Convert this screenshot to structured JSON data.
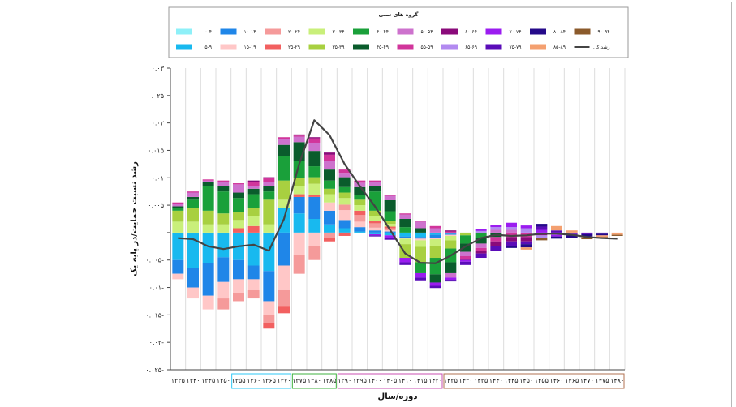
{
  "chart_data": {
    "type": "bar",
    "stacked": true,
    "title": "",
    "legend_title": "گروه های سنی",
    "legend_position": "top",
    "ylabel": "رشد نسبت حمایت/در پایه یک",
    "xlabel": "دوره/سال",
    "ylim": [
      -0.025,
      0.03
    ],
    "yticks": [
      -0.025,
      -0.02,
      -0.015,
      -0.01,
      -0.005,
      0,
      0.005,
      0.01,
      0.015,
      0.02,
      0.025,
      0.03
    ],
    "ytick_labels": [
      "۰.۰۲۵-",
      "۰.۰۲-",
      "۰.۰۱۵-",
      "۰.۰۱-",
      "۰.۰۰۵-",
      "۰",
      "۰.۰۰۵",
      "۰.۰۱",
      "۰.۰۱۵",
      "۰.۰۲",
      "۰.۰۲۵",
      "۰.۰۳"
    ],
    "grid": true,
    "categories": [
      "۱۳۳۵",
      "۱۳۴۰",
      "۱۳۴۵",
      "۱۳۵۰",
      "۱۳۵۵",
      "۱۳۶۰",
      "۱۳۶۵",
      "۱۳۷۰",
      "۱۳۷۵",
      "۱۳۸۰",
      "۱۳۸۵",
      "۱۳۹۰",
      "۱۳۹۵",
      "۱۴۰۰",
      "۱۴۰۵",
      "۱۴۱۰",
      "۱۴۱۵",
      "۱۴۲۰",
      "۱۴۲۵",
      "۱۴۳۰",
      "۱۴۳۵",
      "۱۴۴۰",
      "۱۴۴۵",
      "۱۴۵۰",
      "۱۴۵۵",
      "۱۴۶۰",
      "۱۴۶۵",
      "۱۴۷۰",
      "۱۴۷۵",
      "۱۴۸۰"
    ],
    "period_groups": [
      {
        "color": "#2ec7f5",
        "start": 4,
        "end": 7
      },
      {
        "color": "#3fb23f",
        "start": 8,
        "end": 10
      },
      {
        "color": "#c84fb0",
        "start": 11,
        "end": 17
      },
      {
        "color": "#b07050",
        "start": 18,
        "end": 29
      }
    ],
    "series": [
      {
        "name": "۰-۴",
        "color": "#8ef0f8",
        "values": [
          0,
          0,
          0,
          0,
          0,
          0,
          0,
          0,
          0,
          0,
          0,
          0,
          0,
          0,
          0,
          0,
          0,
          0,
          0,
          0,
          0,
          0,
          0,
          0,
          0,
          0,
          0,
          0,
          0,
          0
        ]
      },
      {
        "name": "۵-۹",
        "color": "#18b9ef",
        "values": [
          -0.005,
          -0.0065,
          -0.0055,
          -0.0045,
          -0.005,
          -0.006,
          -0.007,
          0.0045,
          0.0035,
          0.0025,
          0.0015,
          0.0008,
          0.0002,
          -0.0003,
          -0.0005,
          -0.0007,
          -0.0008,
          -0.0004,
          -0.0002,
          0,
          0,
          0,
          0,
          0,
          0,
          0,
          0,
          0,
          0,
          0
        ]
      },
      {
        "name": "۱۰-۱۴",
        "color": "#1f86e8",
        "values": [
          -0.0025,
          -0.0035,
          -0.006,
          -0.0045,
          -0.0035,
          -0.0025,
          -0.0055,
          -0.006,
          0.003,
          0.004,
          0.0025,
          0.0015,
          0.0008,
          0.0004,
          0.0002,
          -0.0002,
          -0.0003,
          -0.0005,
          -0.0002,
          0,
          0,
          0,
          0,
          0,
          0,
          0,
          0,
          0,
          0,
          0
        ]
      },
      {
        "name": "۱۵-۱۹",
        "color": "#ffc7c7",
        "values": [
          -0.001,
          -0.002,
          -0.0025,
          -0.003,
          -0.0025,
          -0.002,
          -0.0025,
          -0.0045,
          -0.004,
          -0.0025,
          0.0015,
          0.0018,
          0.001,
          0.0005,
          0.0002,
          -0.0002,
          -0.0003,
          -0.0003,
          -0.0002,
          0,
          0,
          0,
          0,
          0,
          0,
          0,
          0,
          0,
          0,
          0
        ]
      },
      {
        "name": "۲۰-۲۴",
        "color": "#f59a9a",
        "values": [
          0,
          0,
          0,
          -0.002,
          -0.0015,
          -0.0015,
          -0.0015,
          -0.003,
          -0.0035,
          -0.0025,
          -0.001,
          0.001,
          0.0012,
          0.0008,
          0.0004,
          0,
          0,
          0,
          0,
          0,
          0,
          0,
          0,
          0,
          0,
          0,
          0,
          0,
          0,
          0
        ]
      },
      {
        "name": "۲۵-۲۹",
        "color": "#f26060",
        "values": [
          0,
          0,
          0,
          0,
          0.0008,
          0.0012,
          -0.001,
          -0.0012,
          0.0005,
          0.0004,
          -0.0006,
          -0.0006,
          0.0008,
          0.0005,
          0.0003,
          0,
          0,
          0,
          0,
          0,
          0,
          0,
          0,
          0,
          0,
          0,
          0,
          0,
          0,
          0
        ]
      },
      {
        "name": "۳۰-۳۴",
        "color": "#c9ef7a",
        "values": [
          0.002,
          0.002,
          0.0015,
          0.0015,
          0.0015,
          0.0018,
          0.0015,
          0.0015,
          0.0015,
          0.002,
          0.0015,
          0.0012,
          0.001,
          0.0008,
          0.0005,
          -0.001,
          -0.0012,
          -0.0012,
          -0.0008,
          0,
          0,
          0,
          0,
          0,
          0,
          0,
          0,
          0,
          0,
          0
        ]
      },
      {
        "name": "۳۵-۳۹",
        "color": "#a8d040",
        "values": [
          0.002,
          0.0025,
          0.0025,
          0.002,
          0.0015,
          0.0015,
          0.0045,
          0.0035,
          0.0015,
          0.0012,
          0.001,
          0.001,
          0.001,
          0.001,
          0.0005,
          -0.0025,
          -0.0028,
          -0.0022,
          -0.0015,
          -0.0005,
          0,
          0,
          0,
          0,
          0,
          0,
          0,
          0,
          0,
          0
        ]
      },
      {
        "name": "۴۰-۴۴",
        "color": "#1aa03a",
        "values": [
          0.0005,
          0.0015,
          0.0045,
          0.004,
          0.0025,
          0.0025,
          0.0015,
          0.0045,
          0.003,
          0.002,
          0.0015,
          0.001,
          0.0008,
          0.0035,
          0.0018,
          0.001,
          -0.002,
          -0.003,
          -0.0025,
          -0.0015,
          -0.001,
          0,
          0,
          0,
          0,
          0,
          0,
          0,
          0,
          0
        ]
      },
      {
        "name": "۴۵-۴۹",
        "color": "#0a5c2c",
        "values": [
          0.0003,
          0.0005,
          0.0008,
          0.001,
          0.001,
          0.001,
          0.001,
          0.002,
          0.0035,
          0.0028,
          0.002,
          0.0018,
          0.0015,
          0.001,
          0.002,
          0.0015,
          0.0008,
          -0.0015,
          -0.002,
          -0.0015,
          -0.001,
          -0.0008,
          0,
          0,
          0,
          0,
          0,
          0,
          0,
          0
        ]
      },
      {
        "name": "۵۰-۵۴",
        "color": "#cd72cd",
        "values": [
          0.0005,
          0.0008,
          0.0002,
          0.0008,
          0.0015,
          0.0005,
          0.0008,
          0.001,
          0.001,
          0.0015,
          0.0015,
          0.0008,
          0.0008,
          0.0008,
          0.0008,
          0.0008,
          0.0012,
          0.0008,
          -0.0008,
          -0.0008,
          -0.0008,
          0.0005,
          0.0005,
          0,
          0,
          0,
          0,
          0,
          0,
          0
        ]
      },
      {
        "name": "۵۵-۵۹",
        "color": "#d1359b",
        "values": [
          0.0002,
          0.0002,
          0.0002,
          0.0002,
          0.0002,
          0.0008,
          0.0006,
          0.0004,
          0.0002,
          0.0008,
          0.0012,
          0.0006,
          0.0004,
          0.0002,
          0.0002,
          0.0002,
          0.0002,
          0.0004,
          0.0002,
          -0.0005,
          -0.0005,
          -0.0008,
          -0.0008,
          -0.0008,
          0,
          0,
          0,
          0,
          0,
          0
        ]
      },
      {
        "name": "۶۰-۶۴",
        "color": "#8a0a7a",
        "values": [
          0,
          0,
          0,
          0,
          0,
          0.0002,
          0.0002,
          0,
          0.0002,
          0.0002,
          0.0004,
          0,
          0,
          0,
          0,
          0,
          0,
          0,
          0.0002,
          -0.0002,
          -0.0005,
          -0.0008,
          -0.0008,
          -0.0008,
          -0.0005,
          0,
          0,
          0,
          0,
          0
        ]
      },
      {
        "name": "۶۵-۶۹",
        "color": "#b28af0",
        "values": [
          0,
          0,
          0,
          0,
          0,
          0,
          0,
          0,
          0,
          0,
          0,
          0,
          0,
          0,
          0,
          0,
          0,
          0,
          0,
          0,
          0.0003,
          0.0005,
          0.0005,
          0.0008,
          -0.0005,
          -0.0004,
          0,
          0,
          0,
          0
        ]
      },
      {
        "name": "۷۰-۷۴",
        "color": "#9b1cf0",
        "values": [
          0,
          0,
          0,
          0,
          0,
          0,
          0,
          0,
          0,
          0,
          0,
          0,
          0,
          -0.0002,
          -0.0005,
          -0.0008,
          -0.0008,
          -0.0006,
          -0.0004,
          -0.0003,
          0.0003,
          0.0004,
          0.0008,
          0.0005,
          0.0005,
          -0.0003,
          -0.0002,
          0,
          0,
          0
        ]
      },
      {
        "name": "۷۵-۷۹",
        "color": "#5a0cb8",
        "values": [
          0,
          0,
          0,
          0,
          0,
          0,
          0,
          0,
          0,
          0,
          0,
          0,
          0,
          -0.0002,
          -0.0003,
          -0.0005,
          -0.0005,
          -0.0004,
          -0.0003,
          -0.0006,
          -0.0008,
          -0.001,
          -0.0008,
          -0.0005,
          0.0006,
          0.0004,
          -0.0003,
          -0.0003,
          -0.0002,
          0
        ]
      },
      {
        "name": "۸۰-۸۴",
        "color": "#250a8a",
        "values": [
          0,
          0,
          0,
          0,
          0,
          0,
          0,
          0,
          0,
          0,
          0,
          0,
          0,
          0,
          0,
          0,
          0,
          0,
          0,
          0,
          0,
          0,
          -0.0004,
          -0.0006,
          0.0005,
          -0.0004,
          -0.0004,
          -0.0004,
          -0.0003,
          0
        ]
      },
      {
        "name": "۸۵-۸۹",
        "color": "#f4a070",
        "values": [
          0,
          0,
          0,
          0,
          0,
          0,
          0,
          0,
          0,
          0,
          0,
          0,
          0,
          0,
          0,
          0,
          0,
          0,
          0,
          0,
          0,
          0,
          0,
          -0.0004,
          0,
          0.0008,
          0.0004,
          -0.0003,
          -0.0003,
          -0.0004
        ]
      },
      {
        "name": "۹۰-۹۴",
        "color": "#8b5a2b",
        "values": [
          0,
          0,
          0,
          0,
          0,
          0,
          0,
          0,
          0,
          0,
          0,
          0,
          0,
          0,
          0,
          0,
          0,
          0,
          0,
          0,
          0,
          0,
          0,
          0,
          -0.0004,
          0,
          0,
          -0.0002,
          -0.0002,
          -0.0002
        ]
      }
    ],
    "line": {
      "name": "رشد کل",
      "color": "#444444",
      "values": [
        -0.001,
        -0.0012,
        -0.0025,
        -0.003,
        -0.0025,
        -0.0022,
        -0.0033,
        0.0025,
        0.0125,
        0.0205,
        0.0178,
        0.0125,
        0.0085,
        0.0048,
        0.0005,
        -0.0038,
        -0.0055,
        -0.0056,
        -0.0042,
        -0.0025,
        -0.001,
        -0.0004,
        -0.0006,
        -0.0005,
        -0.0002,
        -0.0002,
        -0.0004,
        -0.0008,
        -0.001,
        -0.0011
      ]
    }
  }
}
